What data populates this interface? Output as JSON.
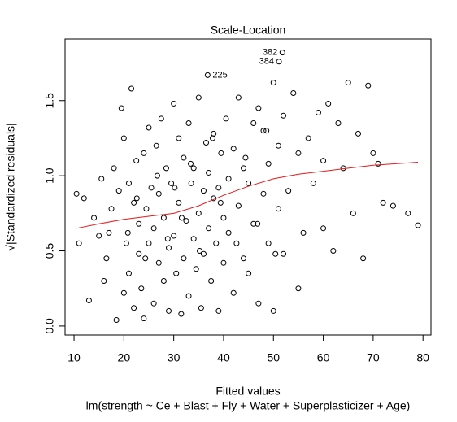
{
  "chart_data": {
    "type": "scatter",
    "title": "Scale-Location",
    "x_label": "Fitted values",
    "subtitle": "lm(strength ~ Ce + Blast + Fly + Water + Superplasticizer + Age)",
    "y_label": "√|Standardized residuals|",
    "xlim": [
      8.2,
      81.6
    ],
    "ylim": [
      -0.06,
      1.91
    ],
    "xticks": [
      10,
      20,
      30,
      40,
      50,
      60,
      70,
      80
    ],
    "yticks": [
      {
        "value": 0,
        "label": "0.0"
      },
      {
        "value": 0.5,
        "label": "0.5"
      },
      {
        "value": 1,
        "label": "1.0"
      },
      {
        "value": 1.5,
        "label": "1.5"
      }
    ],
    "color": "#000000",
    "x": [
      10.5,
      11,
      12,
      13,
      14,
      15,
      15.5,
      16,
      16.5,
      17,
      17.5,
      18,
      18.5,
      19,
      19.5,
      20,
      20,
      20.5,
      21,
      21,
      21.5,
      22,
      22,
      22.5,
      23,
      23,
      23.5,
      24,
      24,
      24.5,
      25,
      25,
      25.5,
      26,
      26,
      26.5,
      27,
      27,
      27.5,
      28,
      28,
      28.5,
      29,
      29,
      29.5,
      30,
      30,
      30.5,
      31,
      31,
      31.5,
      32,
      32,
      32.5,
      33,
      33,
      33.5,
      34,
      34,
      34.5,
      35,
      35,
      35.5,
      36,
      36,
      36.5,
      37,
      37,
      37.5,
      38,
      38,
      38.5,
      39,
      39,
      39.5,
      40,
      40,
      40.5,
      41,
      41,
      42,
      42,
      43,
      43,
      44,
      44,
      45,
      45,
      46,
      46,
      47,
      47,
      48,
      48,
      49,
      49,
      50,
      50,
      51,
      51,
      52,
      52,
      53,
      54,
      55,
      55,
      56,
      57,
      58,
      59,
      60,
      60,
      61,
      62,
      63,
      64,
      65,
      66,
      67,
      68,
      69,
      70,
      71,
      72,
      74,
      77,
      79,
      20.8,
      22.6,
      24.3,
      26.7,
      28.8,
      30.2,
      31.6,
      33.4,
      35.2,
      37.8,
      39.4,
      42.6,
      44.4,
      46.8,
      48.6,
      50.4,
      51.8,
      51.1,
      36.8
    ],
    "values": [
      0.88,
      0.55,
      0.85,
      0.17,
      0.72,
      0.6,
      0.98,
      0.3,
      0.45,
      0.62,
      0.78,
      1.05,
      0.04,
      0.9,
      1.45,
      0.22,
      1.25,
      0.55,
      0.95,
      0.35,
      1.58,
      0.12,
      0.82,
      1.1,
      0.48,
      0.68,
      0.25,
      1.15,
      0.05,
      0.78,
      0.55,
      1.32,
      0.92,
      0.15,
      0.65,
      1.2,
      0.42,
      0.88,
      1.38,
      0.3,
      0.72,
      1.05,
      0.52,
      0.1,
      0.95,
      1.48,
      0.6,
      0.35,
      0.82,
      1.25,
      0.08,
      0.45,
      1.12,
      0.7,
      0.2,
      1.35,
      0.95,
      0.58,
      1.05,
      0.38,
      0.75,
      1.52,
      0.12,
      0.9,
      0.48,
      1.22,
      0.65,
      1.02,
      0.3,
      0.85,
      1.28,
      0.55,
      0.1,
      0.92,
      1.15,
      0.72,
      0.42,
      1.38,
      0.62,
      0.98,
      0.22,
      1.18,
      0.8,
      1.52,
      0.45,
      1.05,
      0.35,
      0.95,
      1.35,
      0.68,
      1.45,
      0.15,
      0.88,
      1.3,
      0.55,
      1.08,
      0.1,
      1.62,
      0.78,
      1.2,
      0.48,
      1.4,
      0.9,
      1.55,
      0.25,
      1.15,
      0.62,
      1.25,
      0.95,
      1.42,
      0.65,
      1.1,
      1.48,
      0.5,
      1.35,
      1.05,
      1.62,
      0.75,
      1.28,
      0.45,
      1.6,
      1.15,
      1.08,
      0.82,
      0.8,
      0.75,
      0.67,
      0.62,
      0.85,
      0.45,
      1.0,
      0.58,
      0.92,
      0.72,
      1.08,
      0.5,
      1.25,
      0.82,
      0.55,
      1.12,
      0.68,
      1.3,
      0.48,
      1.82,
      1.76,
      1.67
    ],
    "smooth": {
      "color": "#e41a1c",
      "x": [
        10.5,
        15,
        20,
        25,
        30,
        35,
        40,
        45,
        50,
        55,
        60,
        65,
        70,
        79
      ],
      "values": [
        0.65,
        0.68,
        0.71,
        0.73,
        0.75,
        0.8,
        0.87,
        0.93,
        0.98,
        1.01,
        1.03,
        1.05,
        1.07,
        1.09
      ]
    },
    "annotations": [
      {
        "label": "382",
        "x": 51.8,
        "y": 1.82,
        "side": "left"
      },
      {
        "label": "384",
        "x": 51.1,
        "y": 1.76,
        "side": "left"
      },
      {
        "label": "225",
        "x": 36.8,
        "y": 1.67,
        "side": "right"
      }
    ]
  }
}
